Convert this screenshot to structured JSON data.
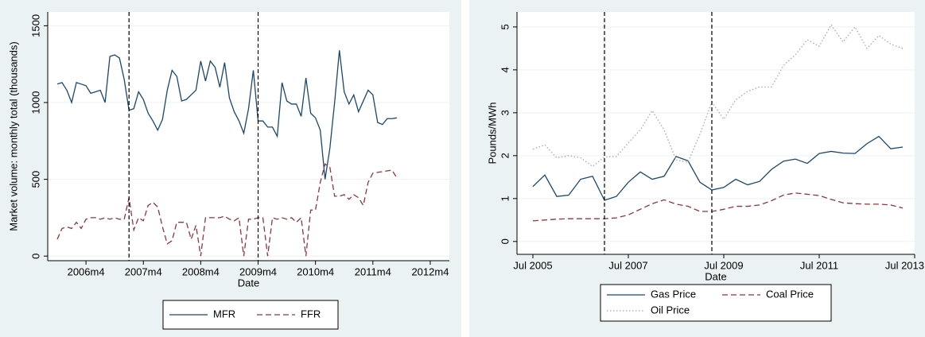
{
  "chart_data": [
    {
      "type": "line",
      "x_label": "Date",
      "y_label": "Market volume: monthly total (thousands)",
      "x": [
        "2005m10",
        "2005m11",
        "2005m12",
        "2006m1",
        "2006m2",
        "2006m3",
        "2006m4",
        "2006m5",
        "2006m6",
        "2006m7",
        "2006m8",
        "2006m9",
        "2006m10",
        "2006m11",
        "2006m12",
        "2007m1",
        "2007m2",
        "2007m3",
        "2007m4",
        "2007m5",
        "2007m6",
        "2007m7",
        "2007m8",
        "2007m9",
        "2007m10",
        "2007m11",
        "2007m12",
        "2008m1",
        "2008m2",
        "2008m3",
        "2008m4",
        "2008m5",
        "2008m6",
        "2008m7",
        "2008m8",
        "2008m9",
        "2008m10",
        "2008m11",
        "2008m12",
        "2009m1",
        "2009m2",
        "2009m3",
        "2009m4",
        "2009m5",
        "2009m6",
        "2009m7",
        "2009m8",
        "2009m9",
        "2009m10",
        "2009m11",
        "2009m12",
        "2010m1",
        "2010m2",
        "2010m3",
        "2010m4",
        "2010m5",
        "2010m6",
        "2010m7",
        "2010m8",
        "2010m9",
        "2010m10",
        "2010m11",
        "2010m12",
        "2011m1",
        "2011m2",
        "2011m3",
        "2011m4",
        "2011m5",
        "2011m6",
        "2011m7",
        "2011m8",
        "2011m9"
      ],
      "series": [
        {
          "name": "MFR",
          "color": "#1a476f",
          "dash": "solid",
          "values": [
            1120,
            1130,
            1080,
            1000,
            1130,
            1120,
            1110,
            1060,
            1070,
            1080,
            1000,
            1300,
            1310,
            1290,
            1150,
            950,
            960,
            1070,
            1020,
            930,
            880,
            820,
            890,
            1080,
            1210,
            1170,
            1010,
            1020,
            1050,
            1080,
            1270,
            1140,
            1270,
            1230,
            1100,
            1260,
            1030,
            940,
            880,
            800,
            960,
            1210,
            880,
            880,
            840,
            840,
            780,
            1130,
            1010,
            990,
            990,
            910,
            1160,
            930,
            900,
            820,
            500,
            700,
            1000,
            1340,
            1070,
            990,
            1050,
            940,
            1010,
            1080,
            1050,
            870,
            857,
            895,
            895,
            900
          ]
        },
        {
          "name": "FFR",
          "color": "#90353b",
          "dash": "dashed",
          "values": [
            110,
            180,
            190,
            180,
            220,
            180,
            240,
            250,
            250,
            240,
            250,
            240,
            250,
            240,
            240,
            380,
            170,
            250,
            230,
            330,
            350,
            320,
            190,
            80,
            100,
            220,
            220,
            220,
            110,
            200,
            0,
            250,
            250,
            250,
            250,
            260,
            240,
            230,
            250,
            0,
            240,
            240,
            250,
            250,
            0,
            250,
            240,
            250,
            240,
            250,
            220,
            250,
            0,
            300,
            300,
            480,
            600,
            580,
            390,
            390,
            400,
            370,
            400,
            380,
            330,
            480,
            540,
            545,
            550,
            555,
            560,
            510
          ]
        }
      ],
      "vlines": [
        "2007m1",
        "2009m4"
      ],
      "xlim": [
        "2005m8",
        "2012m8"
      ],
      "xticks": [
        "2006m4",
        "2007m4",
        "2008m4",
        "2009m4",
        "2010m4",
        "2011m4",
        "2012m4"
      ],
      "ylim": [
        -30,
        1590
      ],
      "yticks": [
        0,
        500,
        1000,
        1500
      ],
      "grid": true,
      "legend": "bottom",
      "legend_columns": 2
    },
    {
      "type": "line",
      "x_label": "Date",
      "y_label": "Pounds/MWh",
      "x": [
        "2005-07",
        "2005-10",
        "2006-01",
        "2006-04",
        "2006-07",
        "2006-10",
        "2007-01",
        "2007-04",
        "2007-07",
        "2007-10",
        "2008-01",
        "2008-04",
        "2008-07",
        "2008-10",
        "2009-01",
        "2009-04",
        "2009-07",
        "2009-10",
        "2010-01",
        "2010-04",
        "2010-07",
        "2010-10",
        "2011-01",
        "2011-04",
        "2011-07",
        "2011-10",
        "2012-01",
        "2012-04",
        "2012-07",
        "2012-10",
        "2013-01",
        "2013-04"
      ],
      "series": [
        {
          "name": "Gas Price",
          "color": "#1a476f",
          "dash": "solid",
          "values": [
            1.28,
            1.55,
            1.05,
            1.08,
            1.45,
            1.52,
            0.96,
            1.05,
            1.38,
            1.62,
            1.45,
            1.52,
            1.98,
            1.88,
            1.38,
            1.2,
            1.26,
            1.45,
            1.32,
            1.4,
            1.68,
            1.87,
            1.92,
            1.82,
            2.05,
            2.1,
            2.06,
            2.05,
            2.28,
            2.45,
            2.16,
            2.2
          ]
        },
        {
          "name": "Coal Price",
          "color": "#90353b",
          "dash": "dashed",
          "values": [
            0.48,
            0.5,
            0.52,
            0.53,
            0.53,
            0.53,
            0.53,
            0.55,
            0.62,
            0.75,
            0.88,
            0.97,
            0.87,
            0.82,
            0.7,
            0.7,
            0.75,
            0.82,
            0.82,
            0.85,
            0.95,
            1.08,
            1.13,
            1.1,
            1.07,
            0.98,
            0.9,
            0.88,
            0.87,
            0.87,
            0.85,
            0.78
          ]
        },
        {
          "name": "Oil Price",
          "color": "#a8a8a8",
          "dash": "dotted",
          "values": [
            2.15,
            2.25,
            1.95,
            2.0,
            1.95,
            1.75,
            1.97,
            1.98,
            2.3,
            2.6,
            3.05,
            2.6,
            1.9,
            1.85,
            2.5,
            3.25,
            2.85,
            3.3,
            3.5,
            3.6,
            3.6,
            4.1,
            4.35,
            4.7,
            4.55,
            5.05,
            4.65,
            5.0,
            4.5,
            4.8,
            4.6,
            4.5
          ]
        }
      ],
      "vlines": [
        "2007-01",
        "2009-04"
      ],
      "xlim": [
        "2005-03",
        "2013-07"
      ],
      "xticks": [
        {
          "value": "2005-07",
          "label": "Jul 2005"
        },
        {
          "value": "2007-07",
          "label": "Jul 2007"
        },
        {
          "value": "2009-07",
          "label": "Jul 2009"
        },
        {
          "value": "2011-07",
          "label": "Jul 2011"
        },
        {
          "value": "2013-07",
          "label": "Jul 2013"
        }
      ],
      "ylim": [
        -0.3,
        5.35
      ],
      "yticks": [
        0,
        1,
        2,
        3,
        4,
        5
      ],
      "grid": true,
      "legend": "bottom",
      "legend_columns": 2
    }
  ]
}
